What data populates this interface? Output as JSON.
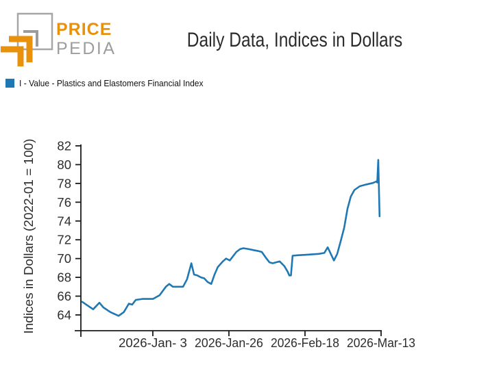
{
  "header": {
    "brand_top": "PRICE",
    "brand_bottom": "PEDIA",
    "title": "Daily Data, Indices in Dollars"
  },
  "legend": {
    "label": "I - Value - Plastics and Elastomers Financial Index",
    "swatch_color": "#1f77b4"
  },
  "colors": {
    "line": "#1f77b4",
    "axis": "#1a1a1a",
    "tick_text": "#2d2d2d",
    "brand_orange": "#e8910d",
    "brand_gray": "#9d9d9d"
  },
  "chart_data": {
    "type": "line",
    "title": "Daily Data, Indices in Dollars",
    "xlabel": "",
    "ylabel": "Indices in Dollars (2022-01 = 100)",
    "ylim": [
      62.3,
      82
    ],
    "y_ticks": [
      64,
      66,
      68,
      70,
      72,
      74,
      76,
      78,
      80,
      82
    ],
    "grid": false,
    "legend_position": "top-left",
    "x_unit": "days-from-domain-start",
    "x_domain_days": [
      0,
      90.75
    ],
    "x_ticks": [
      {
        "d": 21.75,
        "label": "2026-Jan- 3"
      },
      {
        "d": 44.75,
        "label": "2026-Jan-26"
      },
      {
        "d": 67.75,
        "label": "2026-Feb-18"
      },
      {
        "d": 90.75,
        "label": "2026-Mar-13"
      }
    ],
    "series": [
      {
        "name": "I - Value - Plastics and Elastomers Financial Index",
        "color": "#1f77b4",
        "points": [
          [
            0.4,
            65.4
          ],
          [
            3.7,
            64.6
          ],
          [
            5.6,
            65.3
          ],
          [
            6.8,
            64.8
          ],
          [
            8.9,
            64.3
          ],
          [
            11.4,
            63.9
          ],
          [
            13.0,
            64.3
          ],
          [
            14.5,
            65.2
          ],
          [
            15.5,
            65.1
          ],
          [
            16.6,
            65.6
          ],
          [
            18.6,
            65.7
          ],
          [
            21.8,
            65.7
          ],
          [
            23.8,
            66.1
          ],
          [
            25.7,
            67.0
          ],
          [
            26.7,
            67.3
          ],
          [
            27.8,
            67.0
          ],
          [
            30.9,
            67.0
          ],
          [
            32.1,
            67.8
          ],
          [
            33.4,
            69.5
          ],
          [
            34.2,
            68.3
          ],
          [
            35.2,
            68.2
          ],
          [
            36.3,
            68.0
          ],
          [
            37.3,
            67.9
          ],
          [
            38.3,
            67.5
          ],
          [
            39.4,
            67.3
          ],
          [
            40.4,
            68.3
          ],
          [
            41.4,
            69.1
          ],
          [
            42.9,
            69.7
          ],
          [
            43.9,
            70.0
          ],
          [
            45.0,
            69.8
          ],
          [
            47.0,
            70.7
          ],
          [
            48.1,
            71.0
          ],
          [
            49.1,
            71.1
          ],
          [
            50.8,
            71.0
          ],
          [
            52.2,
            70.9
          ],
          [
            53.7,
            70.8
          ],
          [
            54.7,
            70.7
          ],
          [
            55.9,
            70.1
          ],
          [
            57.0,
            69.6
          ],
          [
            58.0,
            69.5
          ],
          [
            59.0,
            69.6
          ],
          [
            60.1,
            69.7
          ],
          [
            61.5,
            69.2
          ],
          [
            62.5,
            68.6
          ],
          [
            63.0,
            68.2
          ],
          [
            63.5,
            68.2
          ],
          [
            64.0,
            70.3
          ],
          [
            65.5,
            70.35
          ],
          [
            67.8,
            70.4
          ],
          [
            71.9,
            70.5
          ],
          [
            73.6,
            70.6
          ],
          [
            74.6,
            71.2
          ],
          [
            76.5,
            69.8
          ],
          [
            77.5,
            70.5
          ],
          [
            78.5,
            71.8
          ],
          [
            79.6,
            73.3
          ],
          [
            80.6,
            75.3
          ],
          [
            81.6,
            76.6
          ],
          [
            82.7,
            77.3
          ],
          [
            84.3,
            77.7
          ],
          [
            86.4,
            77.9
          ],
          [
            88.3,
            78.05
          ],
          [
            89.3,
            78.2
          ],
          [
            89.6,
            78.1
          ],
          [
            89.9,
            80.5
          ],
          [
            90.3,
            74.5
          ]
        ]
      }
    ]
  }
}
